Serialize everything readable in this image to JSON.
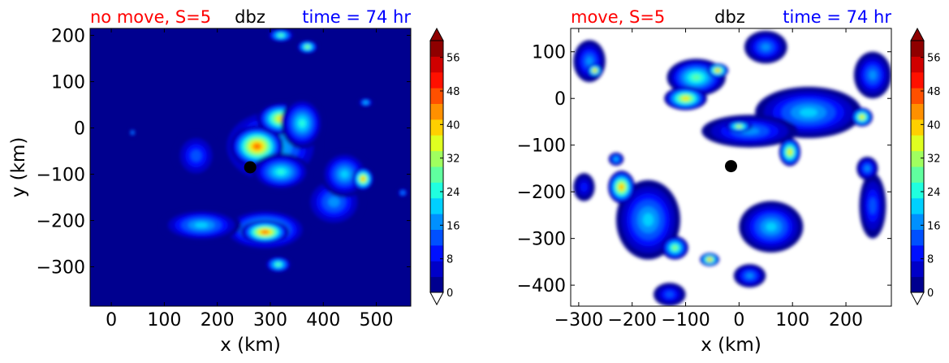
{
  "colors": {
    "title_left": "#ff0000",
    "title_mid": "#000000",
    "title_right": "#0000ff",
    "field_background": "#00008f",
    "marker": "#000000"
  },
  "colormap": [
    "#00008f",
    "#0000c8",
    "#0010ff",
    "#0050ff",
    "#0090ff",
    "#00d0ff",
    "#20ffdf",
    "#60ff9f",
    "#a0ff5f",
    "#dfff20",
    "#ffd000",
    "#ff9000",
    "#ff5000",
    "#ff1000",
    "#d00000",
    "#8f0000"
  ],
  "chart_data": [
    {
      "type": "heatmap",
      "title_left": "no move, S=5",
      "title_mid": "dbz",
      "title_right": "time = 74 hr",
      "xlabel": "x (km)",
      "ylabel": "y (km)",
      "xlim": [
        -40,
        565
      ],
      "ylim": [
        -385,
        215
      ],
      "xticks": [
        0,
        100,
        200,
        300,
        400,
        500
      ],
      "yticks": [
        200,
        100,
        0,
        -100,
        -200,
        -300
      ],
      "colorbar": {
        "min": 0,
        "max": 60,
        "ticks": [
          0,
          8,
          16,
          24,
          32,
          40,
          48,
          56
        ],
        "extend": "both"
      },
      "masked_background": false,
      "marker": {
        "x": 262,
        "y": -85
      },
      "cells": [
        {
          "x": 300,
          "y": -40,
          "rx": 95,
          "ry": 85,
          "v": 22
        },
        {
          "x": 275,
          "y": -40,
          "rx": 50,
          "ry": 45,
          "v": 46
        },
        {
          "x": 320,
          "y": 20,
          "rx": 45,
          "ry": 35,
          "v": 36
        },
        {
          "x": 360,
          "y": 10,
          "rx": 40,
          "ry": 55,
          "v": 22
        },
        {
          "x": 320,
          "y": -95,
          "rx": 55,
          "ry": 40,
          "v": 24
        },
        {
          "x": 290,
          "y": -220,
          "rx": 80,
          "ry": 45,
          "v": 26
        },
        {
          "x": 290,
          "y": -225,
          "rx": 45,
          "ry": 25,
          "v": 46
        },
        {
          "x": 170,
          "y": -210,
          "rx": 75,
          "ry": 35,
          "v": 18
        },
        {
          "x": 420,
          "y": -160,
          "rx": 55,
          "ry": 55,
          "v": 14
        },
        {
          "x": 440,
          "y": -100,
          "rx": 45,
          "ry": 50,
          "v": 18
        },
        {
          "x": 475,
          "y": -110,
          "rx": 20,
          "ry": 25,
          "v": 40
        },
        {
          "x": 160,
          "y": -60,
          "rx": 40,
          "ry": 50,
          "v": 12
        },
        {
          "x": 320,
          "y": 200,
          "rx": 25,
          "ry": 15,
          "v": 26
        },
        {
          "x": 370,
          "y": 175,
          "rx": 20,
          "ry": 15,
          "v": 30
        },
        {
          "x": 315,
          "y": -295,
          "rx": 25,
          "ry": 18,
          "v": 26
        },
        {
          "x": 480,
          "y": 55,
          "rx": 14,
          "ry": 10,
          "v": 20
        },
        {
          "x": 40,
          "y": -10,
          "rx": 6,
          "ry": 8,
          "v": 14
        },
        {
          "x": 550,
          "y": -140,
          "rx": 10,
          "ry": 10,
          "v": 14
        }
      ]
    },
    {
      "type": "heatmap",
      "title_left": "move, S=5",
      "title_mid": "dbz",
      "title_right": "time = 74 hr",
      "xlabel": "x (km)",
      "ylabel": "",
      "xlim": [
        -315,
        285
      ],
      "ylim": [
        -445,
        150
      ],
      "xticks": [
        -300,
        -200,
        -100,
        0,
        100,
        200
      ],
      "yticks": [
        100,
        0,
        -100,
        -200,
        -300,
        -400
      ],
      "colorbar": {
        "min": 0,
        "max": 60,
        "ticks": [
          0,
          8,
          16,
          24,
          32,
          40,
          48,
          56
        ],
        "extend": "both"
      },
      "masked_background": true,
      "marker": {
        "x": -15,
        "y": -145
      },
      "cells": [
        {
          "x": -280,
          "y": 80,
          "rx": 30,
          "ry": 45,
          "v": 16
        },
        {
          "x": -270,
          "y": 60,
          "rx": 14,
          "ry": 14,
          "v": 40
        },
        {
          "x": -80,
          "y": 45,
          "rx": 55,
          "ry": 40,
          "v": 26
        },
        {
          "x": -100,
          "y": 0,
          "rx": 40,
          "ry": 25,
          "v": 36
        },
        {
          "x": -40,
          "y": 60,
          "rx": 20,
          "ry": 15,
          "v": 40
        },
        {
          "x": 50,
          "y": 110,
          "rx": 40,
          "ry": 35,
          "v": 14
        },
        {
          "x": 130,
          "y": -30,
          "rx": 100,
          "ry": 55,
          "v": 18
        },
        {
          "x": 20,
          "y": -70,
          "rx": 90,
          "ry": 35,
          "v": 14
        },
        {
          "x": 0,
          "y": -60,
          "rx": 25,
          "ry": 12,
          "v": 34
        },
        {
          "x": 95,
          "y": -115,
          "rx": 20,
          "ry": 30,
          "v": 38
        },
        {
          "x": 250,
          "y": 50,
          "rx": 35,
          "ry": 50,
          "v": 16
        },
        {
          "x": 230,
          "y": -40,
          "rx": 20,
          "ry": 20,
          "v": 36
        },
        {
          "x": -170,
          "y": -260,
          "rx": 60,
          "ry": 85,
          "v": 18
        },
        {
          "x": -220,
          "y": -190,
          "rx": 25,
          "ry": 35,
          "v": 40
        },
        {
          "x": -120,
          "y": -320,
          "rx": 25,
          "ry": 25,
          "v": 30
        },
        {
          "x": -55,
          "y": -345,
          "rx": 18,
          "ry": 14,
          "v": 40
        },
        {
          "x": 60,
          "y": -275,
          "rx": 60,
          "ry": 55,
          "v": 18
        },
        {
          "x": 20,
          "y": -380,
          "rx": 30,
          "ry": 25,
          "v": 16
        },
        {
          "x": -130,
          "y": -420,
          "rx": 30,
          "ry": 25,
          "v": 10
        },
        {
          "x": 250,
          "y": -230,
          "rx": 25,
          "ry": 70,
          "v": 10
        },
        {
          "x": 240,
          "y": -150,
          "rx": 20,
          "ry": 25,
          "v": 14
        },
        {
          "x": -290,
          "y": -190,
          "rx": 20,
          "ry": 30,
          "v": 8
        },
        {
          "x": -230,
          "y": -130,
          "rx": 14,
          "ry": 14,
          "v": 20
        }
      ]
    }
  ]
}
